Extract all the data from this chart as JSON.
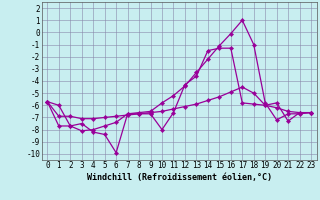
{
  "xlabel": "Windchill (Refroidissement éolien,°C)",
  "x": [
    0,
    1,
    2,
    3,
    4,
    5,
    6,
    7,
    8,
    9,
    10,
    11,
    12,
    13,
    14,
    15,
    16,
    17,
    18,
    19,
    20,
    21,
    22,
    23
  ],
  "line1_y": [
    -5.7,
    -6.0,
    -7.7,
    -7.5,
    -8.2,
    -8.4,
    -9.9,
    -6.7,
    -6.7,
    -6.7,
    -8.0,
    -6.6,
    -4.3,
    -3.6,
    -1.5,
    -1.3,
    -1.3,
    -5.8,
    -5.9,
    -6.0,
    -5.8,
    -7.3,
    -6.6,
    -6.6
  ],
  "line2_y": [
    -5.7,
    -7.7,
    -7.7,
    -8.1,
    -8.0,
    -7.7,
    -7.4,
    -6.7,
    -6.6,
    -6.5,
    -5.8,
    -5.2,
    -4.4,
    -3.3,
    -2.2,
    -1.1,
    -0.1,
    1.0,
    -1.0,
    -5.8,
    -7.2,
    -6.7,
    -6.7,
    -6.6
  ],
  "line3_y": [
    -5.7,
    -6.9,
    -6.9,
    -7.1,
    -7.1,
    -7.0,
    -6.9,
    -6.8,
    -6.7,
    -6.6,
    -6.5,
    -6.3,
    -6.1,
    -5.9,
    -5.6,
    -5.3,
    -4.9,
    -4.5,
    -5.0,
    -6.0,
    -6.2,
    -6.5,
    -6.6,
    -6.6
  ],
  "line_color": "#990099",
  "bg_color": "#c8eef0",
  "grid_color": "#8888aa",
  "ylim": [
    -10.5,
    2.5
  ],
  "yticks": [
    2,
    1,
    0,
    -1,
    -2,
    -3,
    -4,
    -5,
    -6,
    -7,
    -8,
    -9,
    -10
  ],
  "marker": "D",
  "markersize": 2.2,
  "linewidth": 0.9,
  "xlabel_fontsize": 6,
  "tick_fontsize": 5.5
}
